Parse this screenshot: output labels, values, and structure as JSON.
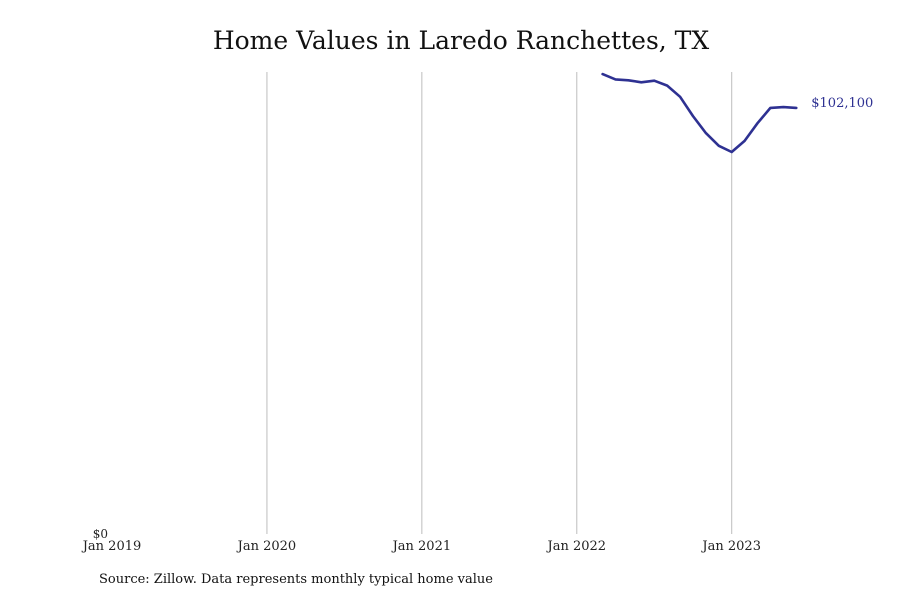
{
  "chart_data": {
    "type": "line",
    "title": "Home Values in Laredo Ranchettes, TX",
    "xlabel": "",
    "ylabel": "",
    "x_ticks": [
      "Jan 2019",
      "Jan 2020",
      "Jan 2021",
      "Jan 2022",
      "Jan 2023"
    ],
    "y_ticks": [
      {
        "value": 0,
        "label": "$0"
      }
    ],
    "xlim": [
      "2019-01",
      "2023-09"
    ],
    "ylim": [
      0,
      112000
    ],
    "grid": "vertical",
    "series": [
      {
        "color": "#2e3192",
        "end_label": "$102,100",
        "points": [
          {
            "x": "2022-03",
            "y": 111500
          },
          {
            "x": "2022-04",
            "y": 110200
          },
          {
            "x": "2022-05",
            "y": 110000
          },
          {
            "x": "2022-06",
            "y": 109500
          },
          {
            "x": "2022-07",
            "y": 109900
          },
          {
            "x": "2022-08",
            "y": 108700
          },
          {
            "x": "2022-09",
            "y": 106000
          },
          {
            "x": "2022-10",
            "y": 101300
          },
          {
            "x": "2022-11",
            "y": 97200
          },
          {
            "x": "2022-12",
            "y": 94100
          },
          {
            "x": "2023-01",
            "y": 92600
          },
          {
            "x": "2023-02",
            "y": 95300
          },
          {
            "x": "2023-03",
            "y": 99600
          },
          {
            "x": "2023-04",
            "y": 103300
          },
          {
            "x": "2023-05",
            "y": 103500
          },
          {
            "x": "2023-06",
            "y": 103300
          }
        ]
      }
    ]
  },
  "source_note": "Source: Zillow. Data represents monthly typical home value"
}
